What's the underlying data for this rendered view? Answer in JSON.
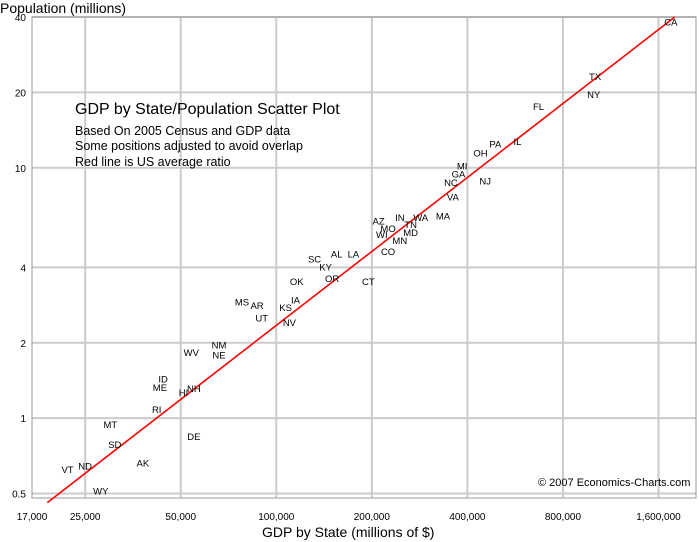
{
  "chart_data": {
    "type": "scatter",
    "title": "GDP by State/Population Scatter Plot",
    "subtitle": [
      "Based On 2005 Census and GDP data",
      "Some positions adjusted to avoid overlap",
      "Red line is US average ratio"
    ],
    "xlabel": "GDP by State (millions of $)",
    "ylabel": "Population (millions)",
    "x_scale": "log",
    "y_scale": "log",
    "xlim": [
      17000,
      2100000
    ],
    "ylim": [
      0.48,
      40
    ],
    "x_ticks": [
      {
        "value": 17000,
        "label": "17,000"
      },
      {
        "value": 25000,
        "label": "25,000"
      },
      {
        "value": 50000,
        "label": "50,000"
      },
      {
        "value": 100000,
        "label": "100,000"
      },
      {
        "value": 200000,
        "label": "200,000"
      },
      {
        "value": 400000,
        "label": "400,000"
      },
      {
        "value": 800000,
        "label": "800,000"
      },
      {
        "value": 1600000,
        "label": "1,600,000"
      }
    ],
    "y_ticks": [
      {
        "value": 0.5,
        "label": "0.5"
      },
      {
        "value": 1,
        "label": "1"
      },
      {
        "value": 2,
        "label": "2"
      },
      {
        "value": 4,
        "label": "4"
      },
      {
        "value": 10,
        "label": "10"
      },
      {
        "value": 20,
        "label": "20"
      },
      {
        "value": 40,
        "label": "40"
      }
    ],
    "grid": true,
    "reference_line": {
      "color": "#ff0000",
      "points": [
        [
          19000,
          0.46
        ],
        [
          1800000,
          40
        ]
      ]
    },
    "points": [
      {
        "label": "CA",
        "x": 1750000,
        "y": 38
      },
      {
        "label": "TX",
        "x": 1010000,
        "y": 23
      },
      {
        "label": "NY",
        "x": 1000000,
        "y": 19.5
      },
      {
        "label": "FL",
        "x": 670000,
        "y": 17.5
      },
      {
        "label": "PA",
        "x": 490000,
        "y": 12.4
      },
      {
        "label": "IL",
        "x": 575000,
        "y": 12.7
      },
      {
        "label": "OH",
        "x": 440000,
        "y": 11.4
      },
      {
        "label": "MI",
        "x": 385000,
        "y": 10.1
      },
      {
        "label": "GA",
        "x": 375000,
        "y": 9.4
      },
      {
        "label": "NC",
        "x": 355000,
        "y": 8.7
      },
      {
        "label": "NJ",
        "x": 455000,
        "y": 8.8
      },
      {
        "label": "VA",
        "x": 360000,
        "y": 7.6
      },
      {
        "label": "MA",
        "x": 335000,
        "y": 6.4
      },
      {
        "label": "IN",
        "x": 245000,
        "y": 6.3
      },
      {
        "label": "WA",
        "x": 285000,
        "y": 6.3
      },
      {
        "label": "AZ",
        "x": 210000,
        "y": 6.1
      },
      {
        "label": "TN",
        "x": 265000,
        "y": 5.9
      },
      {
        "label": "MO",
        "x": 225000,
        "y": 5.7
      },
      {
        "label": "MD",
        "x": 265000,
        "y": 5.5
      },
      {
        "label": "WI",
        "x": 215000,
        "y": 5.4
      },
      {
        "label": "MN",
        "x": 245000,
        "y": 5.1
      },
      {
        "label": "CO",
        "x": 225000,
        "y": 4.6
      },
      {
        "label": "AL",
        "x": 155000,
        "y": 4.5
      },
      {
        "label": "LA",
        "x": 175000,
        "y": 4.5
      },
      {
        "label": "SC",
        "x": 132000,
        "y": 4.3
      },
      {
        "label": "KY",
        "x": 143000,
        "y": 4.0
      },
      {
        "label": "OK",
        "x": 116000,
        "y": 3.5
      },
      {
        "label": "OR",
        "x": 150000,
        "y": 3.6
      },
      {
        "label": "CT",
        "x": 195000,
        "y": 3.5
      },
      {
        "label": "IA",
        "x": 115000,
        "y": 2.95
      },
      {
        "label": "MS",
        "x": 78000,
        "y": 2.9
      },
      {
        "label": "AR",
        "x": 87000,
        "y": 2.8
      },
      {
        "label": "KS",
        "x": 107000,
        "y": 2.75
      },
      {
        "label": "UT",
        "x": 90000,
        "y": 2.5
      },
      {
        "label": "NV",
        "x": 110000,
        "y": 2.4
      },
      {
        "label": "NM",
        "x": 66000,
        "y": 1.95
      },
      {
        "label": "NE",
        "x": 66000,
        "y": 1.78
      },
      {
        "label": "WV",
        "x": 54000,
        "y": 1.82
      },
      {
        "label": "ID",
        "x": 44000,
        "y": 1.43
      },
      {
        "label": "ME",
        "x": 43000,
        "y": 1.32
      },
      {
        "label": "NH",
        "x": 55000,
        "y": 1.31
      },
      {
        "label": "HI",
        "x": 51000,
        "y": 1.26
      },
      {
        "label": "RI",
        "x": 42000,
        "y": 1.08
      },
      {
        "label": "DE",
        "x": 55000,
        "y": 0.84
      },
      {
        "label": "MT",
        "x": 30000,
        "y": 0.94
      },
      {
        "label": "SD",
        "x": 31000,
        "y": 0.78
      },
      {
        "label": "ND",
        "x": 25000,
        "y": 0.64
      },
      {
        "label": "VT",
        "x": 22000,
        "y": 0.62
      },
      {
        "label": "AK",
        "x": 38000,
        "y": 0.66
      },
      {
        "label": "WY",
        "x": 28000,
        "y": 0.51
      }
    ],
    "copyright": "© 2007 Economics-Charts.com"
  }
}
